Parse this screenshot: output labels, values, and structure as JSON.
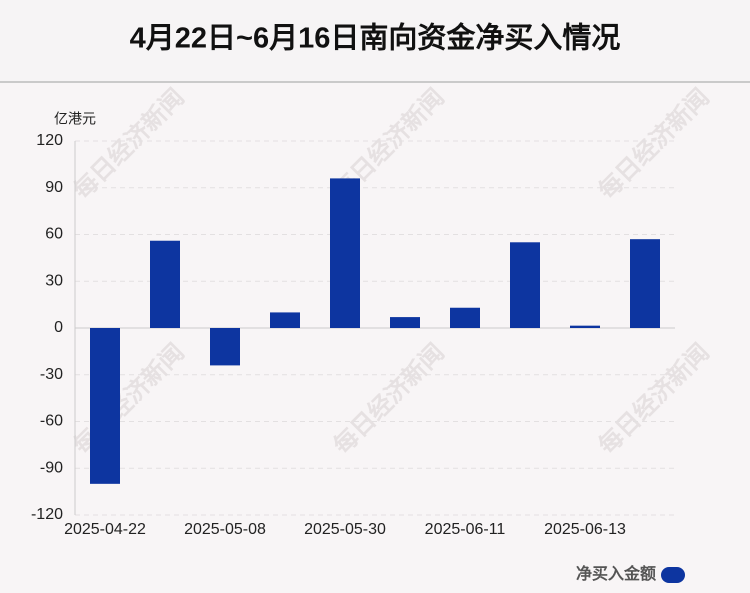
{
  "chart_data": {
    "type": "bar",
    "title": "4月22日~6月16日南向资金净买入情况",
    "watermark": "每日经济新闻",
    "y_label": "亿港元",
    "categories": [
      "2025-04-22",
      null,
      "2025-05-08",
      null,
      "2025-05-30",
      null,
      "2025-06-11",
      null,
      "2025-06-13",
      null
    ],
    "series": [
      {
        "name": "净买入金额",
        "color": "#0d35a0",
        "values": [
          -100,
          56,
          -24,
          10,
          96,
          7,
          13,
          55,
          1.5,
          57
        ]
      }
    ],
    "ylim": [
      -120,
      120
    ],
    "yticks": [
      -120,
      -90,
      -60,
      -30,
      0,
      30,
      60,
      90,
      120
    ],
    "grid": true,
    "legend": "bottom-right"
  }
}
